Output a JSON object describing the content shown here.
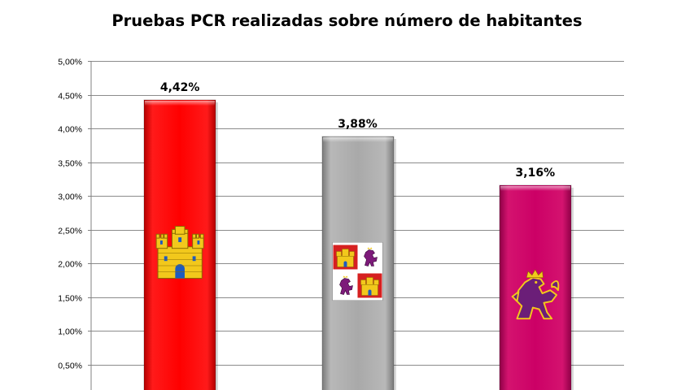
{
  "chart_data": {
    "type": "bar",
    "title": "Pruebas PCR realizadas sobre número de habitantes",
    "categories": [
      "Castilla",
      "Castilla y León",
      "León"
    ],
    "values": [
      4.42,
      3.88,
      3.16
    ],
    "data_labels": [
      "4,42%",
      "3,88%",
      "3,16%"
    ],
    "bar_colors": [
      "#ff0000",
      "#a6a6a6",
      "#cc0066"
    ],
    "bar_icons": [
      "castle-emblem",
      "castilla-y-leon-quartered-arms",
      "rampant-lion-emblem"
    ],
    "ylim": [
      0,
      5
    ],
    "yticks": [
      0.5,
      1,
      1.5,
      2,
      2.5,
      3,
      3.5,
      4,
      4.5,
      5
    ],
    "ytick_labels": [
      "0,50%",
      "1,00%",
      "1,50%",
      "2,00%",
      "2,50%",
      "3,00%",
      "3,50%",
      "4,00%",
      "4,50%",
      "5,00%"
    ],
    "grid": true,
    "legend": "none"
  }
}
